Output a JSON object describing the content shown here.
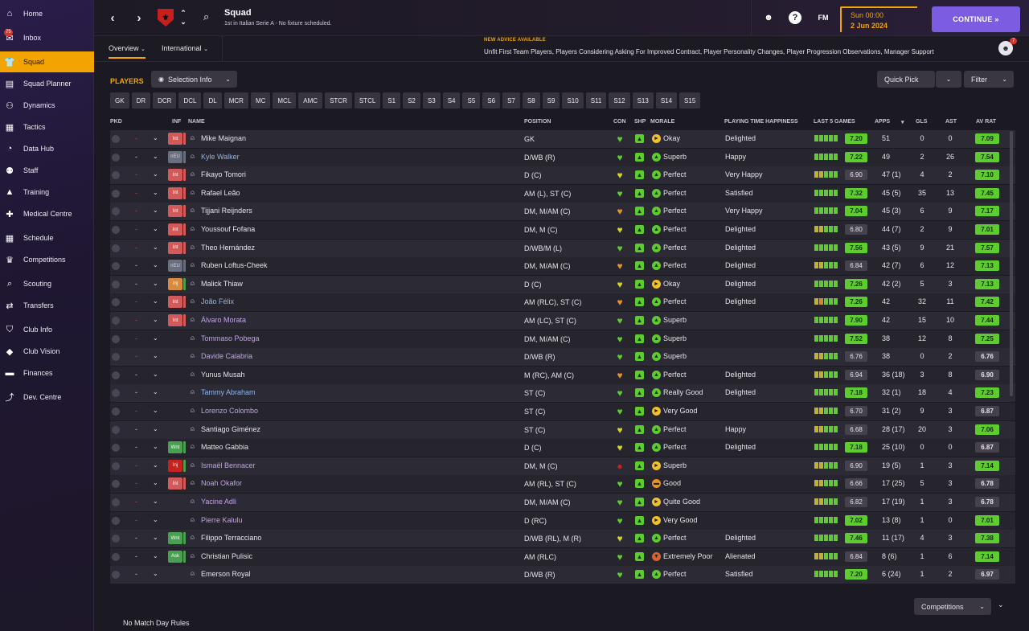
{
  "sidebar": {
    "items": [
      {
        "label": "Home",
        "icon": "home-icon",
        "glyph": "⌂"
      },
      {
        "label": "Inbox",
        "icon": "inbox-icon",
        "glyph": "✉",
        "badge": "75"
      },
      {
        "label": "Squad",
        "icon": "shirt-icon",
        "glyph": "👕",
        "active": true
      },
      {
        "label": "Squad Planner",
        "icon": "planner-icon",
        "glyph": "▤"
      },
      {
        "label": "Dynamics",
        "icon": "dynamics-icon",
        "glyph": "⚇"
      },
      {
        "label": "Tactics",
        "icon": "tactics-icon",
        "glyph": "▦"
      },
      {
        "label": "Data Hub",
        "icon": "data-hub-icon",
        "glyph": "◔"
      },
      {
        "label": "Staff",
        "icon": "staff-icon",
        "glyph": "⚉"
      },
      {
        "label": "Training",
        "icon": "training-icon",
        "glyph": "▲"
      },
      {
        "label": "Medical Centre",
        "icon": "medical-icon",
        "glyph": "✚"
      },
      {
        "label": "Schedule",
        "icon": "calendar-icon",
        "glyph": "▦"
      },
      {
        "label": "Competitions",
        "icon": "trophy-icon",
        "glyph": "♛"
      },
      {
        "label": "Scouting",
        "icon": "scouting-icon",
        "glyph": "⌕"
      },
      {
        "label": "Transfers",
        "icon": "transfers-icon",
        "glyph": "⇄"
      },
      {
        "label": "Club Info",
        "icon": "shield-icon",
        "glyph": "⛉"
      },
      {
        "label": "Club Vision",
        "icon": "vision-icon",
        "glyph": "◆"
      },
      {
        "label": "Finances",
        "icon": "finances-icon",
        "glyph": "▬"
      },
      {
        "label": "Dev. Centre",
        "icon": "dev-centre-icon",
        "glyph": "⤴"
      }
    ]
  },
  "topbar": {
    "title": "Squad",
    "subtitle": "1st in Italian Serie A - No fixture scheduled.",
    "back_glyph": "‹",
    "forward_glyph": "›",
    "help_glyph": "?",
    "fm_label": "FM",
    "date_line1": "Sun 00:00",
    "date_line2": "2 Jun 2024",
    "continue_label": "CONTINUE  »"
  },
  "subbar": {
    "tabs": [
      "Overview",
      "International"
    ],
    "advice_heading": "NEW ADVICE AVAILABLE",
    "advice_text": "Unfit First Team Players, Players Considering Asking For Improved Contract, Player Personality Changes, Player Progression Observations, Manager Support",
    "advice_badge": "7"
  },
  "toolbar": {
    "players_label": "PLAYERS",
    "selection_info": "Selection Info",
    "quick_pick": "Quick Pick",
    "filter": "Filter",
    "positions": [
      "GK",
      "DR",
      "DCR",
      "DCL",
      "DL",
      "MCR",
      "MC",
      "MCL",
      "AMC",
      "STCR",
      "STCL",
      "S1",
      "S2",
      "S3",
      "S4",
      "S5",
      "S6",
      "S7",
      "S8",
      "S9",
      "S10",
      "S11",
      "S12",
      "S13",
      "S14",
      "S15"
    ]
  },
  "table": {
    "headers": {
      "pkd": "PKD",
      "inf": "INF",
      "name": "NAME",
      "position": "POSITION",
      "con": "CON",
      "shp": "SHP",
      "morale": "MORALE",
      "pth": "PLAYING TIME HAPPINESS",
      "last5": "LAST 5 GAMES",
      "apps": "APPS",
      "gls": "GLS",
      "ast": "AST",
      "avrat": "AV RAT"
    },
    "rows": [
      {
        "pkd": "",
        "inf": "Int",
        "infc": "int",
        "name": "Mike Maignan",
        "nc": "",
        "pos": "GK",
        "con": "g",
        "mor": "Okay",
        "mc": "y",
        "pth": "Delighted",
        "f": "ggggg",
        "fv": "7.20",
        "fvc": "g",
        "apps": "51",
        "gls": "0",
        "ast": "0",
        "av": "7.09",
        "avc": "g"
      },
      {
        "pkd": "-",
        "inf": "nEU",
        "infc": "neu",
        "name": "Kyle Walker",
        "nc": "link",
        "pos": "D/WB (R)",
        "con": "g",
        "mor": "Superb",
        "mc": "g",
        "pth": "Happy",
        "f": "ggggg",
        "fv": "7.22",
        "fvc": "g",
        "apps": "49",
        "gls": "2",
        "ast": "26",
        "av": "7.54",
        "avc": "g"
      },
      {
        "pkd": "",
        "inf": "Int",
        "infc": "int",
        "name": "Fikayo Tomori",
        "nc": "",
        "pos": "D (C)",
        "con": "y",
        "mor": "Perfect",
        "mc": "g",
        "pth": "Very Happy",
        "f": "yyggg",
        "fv": "6.90",
        "fvc": "x",
        "apps": "47 (1)",
        "gls": "4",
        "ast": "2",
        "av": "7.10",
        "avc": "g"
      },
      {
        "pkd": "",
        "inf": "Int",
        "infc": "int",
        "name": "Rafael Leão",
        "nc": "",
        "pos": "AM (L), ST (C)",
        "con": "g",
        "mor": "Perfect",
        "mc": "g",
        "pth": "Satisfied",
        "f": "ggggg",
        "fv": "7.32",
        "fvc": "g",
        "apps": "45 (5)",
        "gls": "35",
        "ast": "13",
        "av": "7.45",
        "avc": "g"
      },
      {
        "pkd": "",
        "inf": "Int",
        "infc": "int",
        "name": "Tijjani Reijnders",
        "nc": "",
        "pos": "DM, M/AM (C)",
        "con": "o",
        "mor": "Perfect",
        "mc": "g",
        "pth": "Very Happy",
        "f": "ggggg",
        "fv": "7.04",
        "fvc": "g",
        "apps": "45 (3)",
        "gls": "6",
        "ast": "9",
        "av": "7.17",
        "avc": "g"
      },
      {
        "pkd": "",
        "inf": "Int",
        "infc": "int",
        "name": "Youssouf Fofana",
        "nc": "",
        "pos": "DM, M (C)",
        "con": "y",
        "mor": "Perfect",
        "mc": "g",
        "pth": "Delighted",
        "f": "yyggg",
        "fv": "6.80",
        "fvc": "x",
        "apps": "44 (7)",
        "gls": "2",
        "ast": "9",
        "av": "7.01",
        "avc": "g"
      },
      {
        "pkd": "",
        "inf": "Int",
        "infc": "int",
        "name": "Theo Hernández",
        "nc": "",
        "pos": "D/WB/M (L)",
        "con": "g",
        "mor": "Perfect",
        "mc": "g",
        "pth": "Delighted",
        "f": "ggggg",
        "fv": "7.56",
        "fvc": "g",
        "apps": "43 (5)",
        "gls": "9",
        "ast": "21",
        "av": "7.57",
        "avc": "g"
      },
      {
        "pkd": "-",
        "inf": "nEU",
        "infc": "neu",
        "name": "Ruben Loftus-Cheek",
        "nc": "",
        "pos": "DM, M/AM (C)",
        "con": "o",
        "mor": "Perfect",
        "mc": "g",
        "pth": "Delighted",
        "f": "yyggg",
        "fv": "6.84",
        "fvc": "x",
        "apps": "42 (7)",
        "gls": "6",
        "ast": "12",
        "av": "7.13",
        "avc": "g"
      },
      {
        "pkd": "-",
        "inf": "Inj",
        "infc": "inj",
        "name": "Malick Thiaw",
        "nc": "",
        "pos": "D (C)",
        "con": "y",
        "mor": "Okay",
        "mc": "y",
        "pth": "Delighted",
        "f": "ggggg",
        "fv": "7.26",
        "fvc": "g",
        "apps": "42 (2)",
        "gls": "5",
        "ast": "3",
        "av": "7.13",
        "avc": "g"
      },
      {
        "pkd": "",
        "inf": "Int",
        "infc": "int",
        "name": "João Félix",
        "nc": "link",
        "pos": "AM (RLC), ST (C)",
        "con": "o",
        "mor": "Perfect",
        "mc": "g",
        "pth": "Delighted",
        "f": "yoggg",
        "fv": "7.26",
        "fvc": "g",
        "apps": "42",
        "gls": "32",
        "ast": "11",
        "av": "7.42",
        "avc": "g"
      },
      {
        "pkd": "",
        "inf": "Int",
        "infc": "int",
        "name": "Álvaro Morata",
        "nc": "loan",
        "pos": "AM (LC), ST (C)",
        "con": "g",
        "mor": "Superb",
        "mc": "g",
        "pth": "",
        "f": "ggggg",
        "fv": "7.90",
        "fvc": "g",
        "apps": "42",
        "gls": "15",
        "ast": "10",
        "av": "7.44",
        "avc": "g"
      },
      {
        "pkd": "",
        "inf": "",
        "infc": "",
        "name": "Tommaso Pobega",
        "nc": "loan",
        "pos": "DM, M/AM (C)",
        "con": "g",
        "mor": "Superb",
        "mc": "g",
        "pth": "",
        "f": "ggggg",
        "fv": "7.52",
        "fvc": "g",
        "apps": "38",
        "gls": "12",
        "ast": "8",
        "av": "7.25",
        "avc": "g"
      },
      {
        "pkd": "",
        "inf": "",
        "infc": "",
        "name": "Davide Calabria",
        "nc": "loan",
        "pos": "D/WB (R)",
        "con": "g",
        "mor": "Superb",
        "mc": "g",
        "pth": "",
        "f": "yyggg",
        "fv": "6.76",
        "fvc": "x",
        "apps": "38",
        "gls": "0",
        "ast": "2",
        "av": "6.76",
        "avc": "x"
      },
      {
        "pkd": "-",
        "inf": "",
        "infc": "",
        "name": "Yunus Musah",
        "nc": "",
        "pos": "M (RC), AM (C)",
        "con": "o",
        "mor": "Perfect",
        "mc": "g",
        "pth": "Delighted",
        "f": "yyggg",
        "fv": "6.94",
        "fvc": "x",
        "apps": "36 (18)",
        "gls": "3",
        "ast": "8",
        "av": "6.90",
        "avc": "x"
      },
      {
        "pkd": "-",
        "inf": "",
        "infc": "",
        "name": "Tammy Abraham",
        "nc": "link",
        "pos": "ST (C)",
        "con": "g",
        "mor": "Really Good",
        "mc": "g",
        "pth": "Delighted",
        "f": "ggggg",
        "fv": "7.18",
        "fvc": "g",
        "apps": "32 (1)",
        "gls": "18",
        "ast": "4",
        "av": "7.23",
        "avc": "g"
      },
      {
        "pkd": "",
        "inf": "",
        "infc": "",
        "name": "Lorenzo Colombo",
        "nc": "loan",
        "pos": "ST (C)",
        "con": "g",
        "mor": "Very Good",
        "mc": "y",
        "pth": "",
        "f": "yyggg",
        "fv": "6.70",
        "fvc": "x",
        "apps": "31 (2)",
        "gls": "9",
        "ast": "3",
        "av": "6.87",
        "avc": "x"
      },
      {
        "pkd": "-",
        "inf": "",
        "infc": "",
        "name": "Santiago Giménez",
        "nc": "",
        "pos": "ST (C)",
        "con": "y",
        "mor": "Perfect",
        "mc": "g",
        "pth": "Happy",
        "f": "yyggg",
        "fv": "6.68",
        "fvc": "x",
        "apps": "28 (17)",
        "gls": "20",
        "ast": "3",
        "av": "7.06",
        "avc": "g"
      },
      {
        "pkd": "-",
        "inf": "Wnt",
        "infc": "wnt",
        "name": "Matteo Gabbia",
        "nc": "",
        "pos": "D (C)",
        "con": "y",
        "mor": "Perfect",
        "mc": "g",
        "pth": "Delighted",
        "f": "ggggg",
        "fv": "7.18",
        "fvc": "g",
        "apps": "25 (10)",
        "gls": "0",
        "ast": "0",
        "av": "6.87",
        "avc": "x"
      },
      {
        "pkd": "",
        "inf": "Inj",
        "infc": "injr",
        "name": "Ismaël Bennacer",
        "nc": "loan",
        "pos": "DM, M (C)",
        "con": "r",
        "mor": "Superb",
        "mc": "y",
        "pth": "",
        "f": "yyggg",
        "fv": "6.90",
        "fvc": "x",
        "apps": "19 (5)",
        "gls": "1",
        "ast": "3",
        "av": "7.14",
        "avc": "g"
      },
      {
        "pkd": "",
        "inf": "Int",
        "infc": "int",
        "name": "Noah Okafor",
        "nc": "loan",
        "pos": "AM (RL), ST (C)",
        "con": "g",
        "mor": "Good",
        "mc": "o",
        "pth": "",
        "f": "yyggg",
        "fv": "6.66",
        "fvc": "x",
        "apps": "17 (25)",
        "gls": "5",
        "ast": "3",
        "av": "6.78",
        "avc": "x"
      },
      {
        "pkd": "",
        "inf": "",
        "infc": "",
        "name": "Yacine Adli",
        "nc": "loan",
        "pos": "DM, M/AM (C)",
        "con": "g",
        "mor": "Quite Good",
        "mc": "y",
        "pth": "",
        "f": "yyggg",
        "fv": "6.82",
        "fvc": "x",
        "apps": "17 (19)",
        "gls": "1",
        "ast": "3",
        "av": "6.78",
        "avc": "x"
      },
      {
        "pkd": "",
        "inf": "",
        "infc": "",
        "name": "Pierre Kalulu",
        "nc": "loan",
        "pos": "D (RC)",
        "con": "g",
        "mor": "Very Good",
        "mc": "y",
        "pth": "",
        "f": "ggggg",
        "fv": "7.02",
        "fvc": "g",
        "apps": "13 (8)",
        "gls": "1",
        "ast": "0",
        "av": "7.01",
        "avc": "g"
      },
      {
        "pkd": "-",
        "inf": "Wnt",
        "infc": "wnt",
        "name": "Filippo Terracciano",
        "nc": "",
        "pos": "D/WB (RL), M (R)",
        "con": "y",
        "mor": "Perfect",
        "mc": "g",
        "pth": "Delighted",
        "f": "ggggg",
        "fv": "7.46",
        "fvc": "g",
        "apps": "11 (17)",
        "gls": "4",
        "ast": "3",
        "av": "7.38",
        "avc": "g"
      },
      {
        "pkd": "-",
        "inf": "Ask",
        "infc": "ask",
        "name": "Christian Pulisic",
        "nc": "",
        "pos": "AM (RLC)",
        "con": "g",
        "mor": "Extremely Poor",
        "mc": "r",
        "pth": "Alienated",
        "f": "yyggg",
        "fv": "6.84",
        "fvc": "x",
        "apps": "8 (6)",
        "gls": "1",
        "ast": "6",
        "av": "7.14",
        "avc": "g"
      },
      {
        "pkd": "-",
        "inf": "",
        "infc": "",
        "name": "Emerson Royal",
        "nc": "",
        "pos": "D/WB (R)",
        "con": "g",
        "mor": "Perfect",
        "mc": "g",
        "pth": "Satisfied",
        "f": "ggggg",
        "fv": "7.20",
        "fvc": "g",
        "apps": "6 (24)",
        "gls": "1",
        "ast": "2",
        "av": "6.97",
        "avc": "x"
      }
    ]
  },
  "footer": {
    "competitions": "Competitions",
    "matchday": "No Match Day Rules"
  },
  "colors": {
    "accent": "#f2a500",
    "continue": "#7c5ce0",
    "good": "#5ecb2f",
    "warn": "#e8c42a",
    "bad": "#e0612f"
  }
}
